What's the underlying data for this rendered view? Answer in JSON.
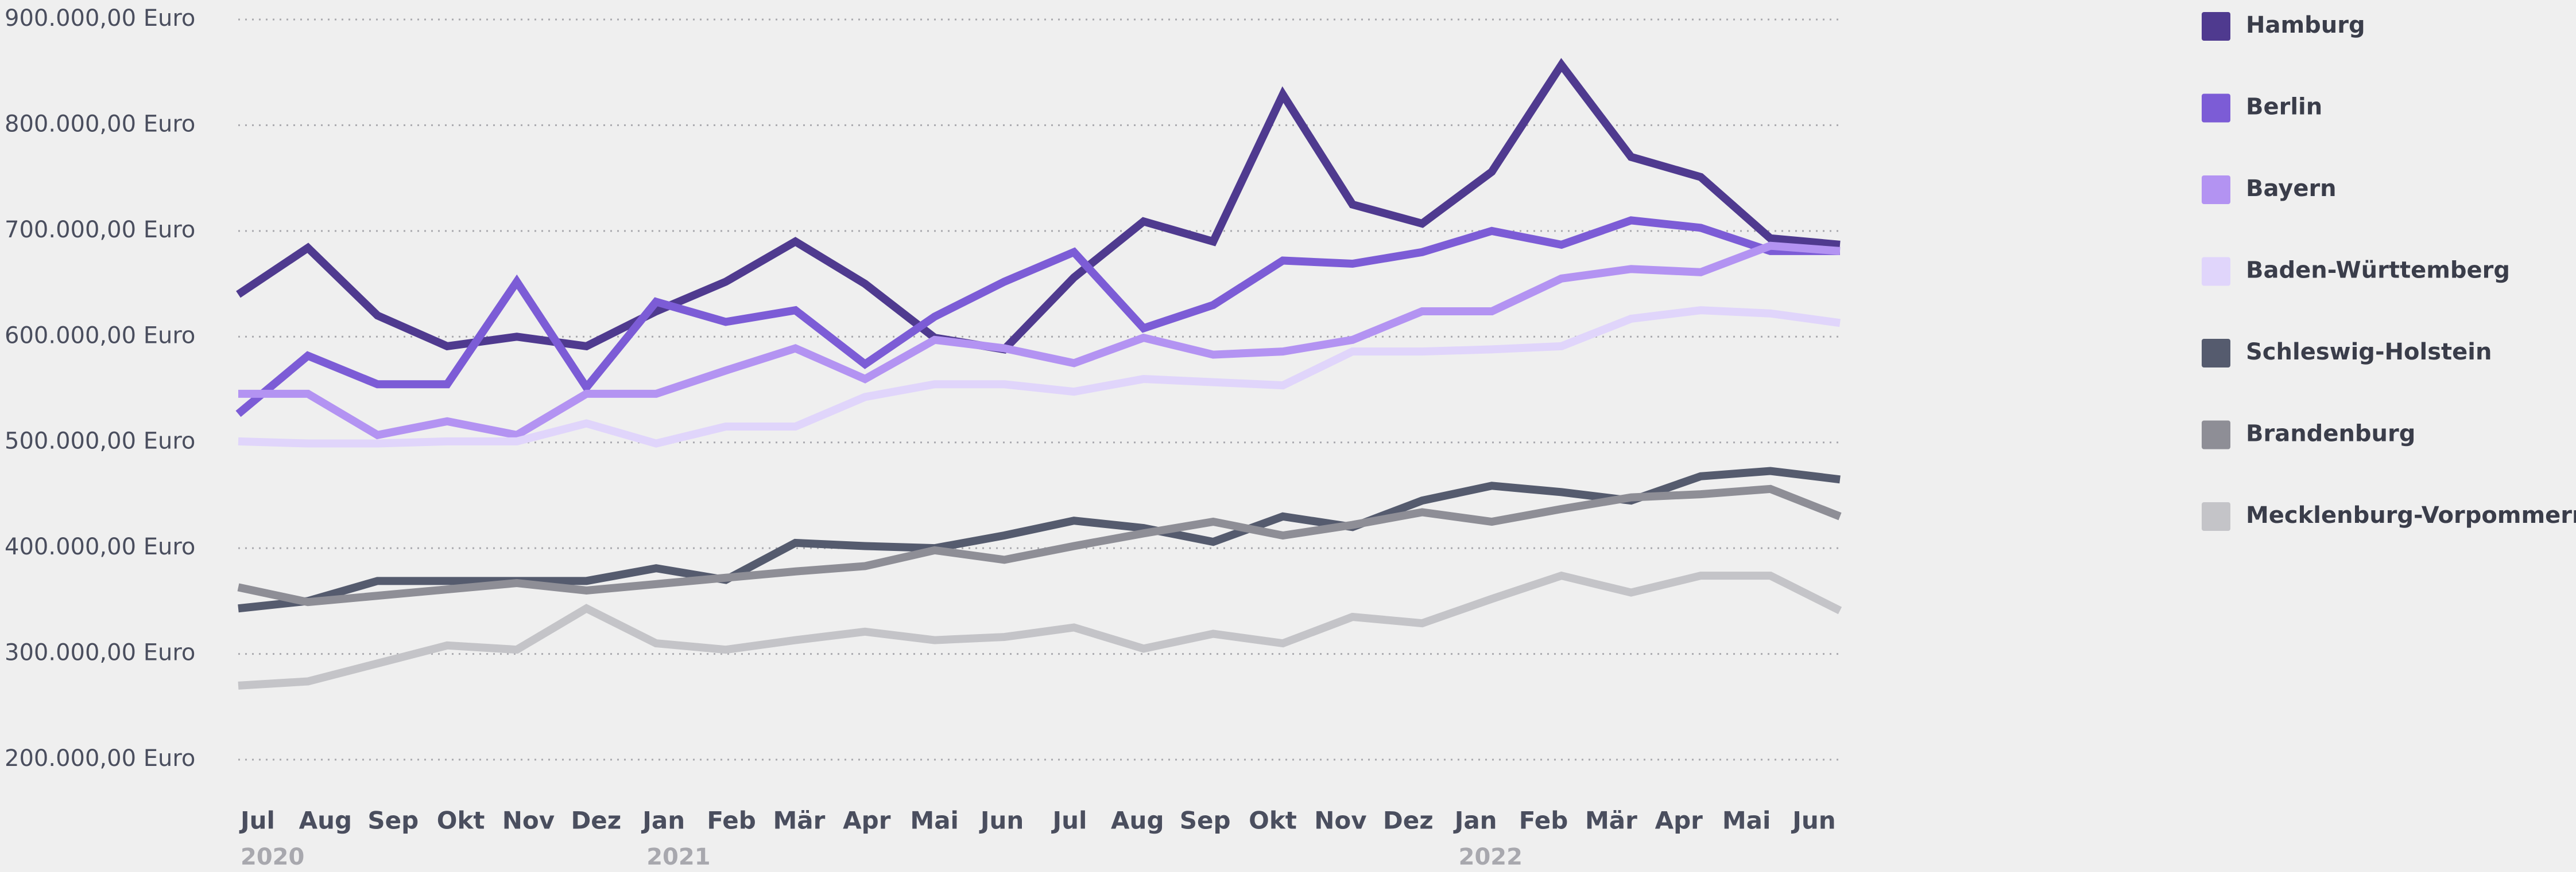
{
  "chart_data": {
    "type": "line",
    "categories": [
      "Jul",
      "Aug",
      "Sep",
      "Okt",
      "Nov",
      "Dez",
      "Jan",
      "Feb",
      "Mär",
      "Apr",
      "Mai",
      "Jun",
      "Jul",
      "Aug",
      "Sep",
      "Okt",
      "Nov",
      "Dez",
      "Jan",
      "Feb",
      "Mär",
      "Apr",
      "Mai",
      "Jun"
    ],
    "years": [
      "2020",
      null,
      null,
      null,
      null,
      null,
      "2021",
      null,
      null,
      null,
      null,
      null,
      null,
      null,
      null,
      null,
      null,
      null,
      "2022",
      null,
      null,
      null,
      null,
      null
    ],
    "ylim": [
      200000,
      900000
    ],
    "yticks": [
      {
        "value": 900000,
        "label": "900.000,00 Euro"
      },
      {
        "value": 800000,
        "label": "800.000,00 Euro"
      },
      {
        "value": 700000,
        "label": "700.000,00 Euro"
      },
      {
        "value": 600000,
        "label": "600.000,00 Euro"
      },
      {
        "value": 500000,
        "label": "500.000,00 Euro"
      },
      {
        "value": 400000,
        "label": "400.000,00 Euro"
      },
      {
        "value": 300000,
        "label": "300.000,00 Euro"
      },
      {
        "value": 200000,
        "label": "200.000,00 Euro"
      }
    ],
    "grid": true,
    "legend": "right",
    "series": [
      {
        "name": "Hamburg",
        "color": "#4f3a8f",
        "values": [
          640000,
          684000,
          620000,
          591000,
          600000,
          591000,
          624000,
          652000,
          690000,
          650000,
          599000,
          588000,
          656000,
          709000,
          690000,
          829000,
          725000,
          707000,
          756000,
          857000,
          770000,
          751000,
          693000,
          687000
        ]
      },
      {
        "name": "Berlin",
        "color": "#7c5cd6",
        "values": [
          527000,
          582000,
          555000,
          555000,
          652000,
          552000,
          633000,
          614000,
          625000,
          574000,
          619000,
          652000,
          680000,
          608000,
          630000,
          672000,
          669000,
          680000,
          700000,
          687000,
          710000,
          703000,
          681000,
          681000
        ]
      },
      {
        "name": "Bayern",
        "color": "#b393f2",
        "values": [
          546000,
          546000,
          507000,
          520000,
          507000,
          546000,
          546000,
          568000,
          589000,
          560000,
          597000,
          589000,
          575000,
          599000,
          583000,
          586000,
          597000,
          624000,
          624000,
          655000,
          664000,
          661000,
          686000,
          681000
        ]
      },
      {
        "name": "Baden-Württemberg",
        "color": "#e0d5fb",
        "values": [
          501000,
          499000,
          499000,
          501000,
          501000,
          518000,
          499000,
          515000,
          515000,
          543000,
          555000,
          555000,
          548000,
          560000,
          557000,
          554000,
          586000,
          586000,
          588000,
          591000,
          617000,
          625000,
          622000,
          613000
        ]
      },
      {
        "name": "Schleswig-Holstein",
        "color": "#555b6e",
        "values": [
          343000,
          350000,
          369000,
          369000,
          369000,
          369000,
          381000,
          370000,
          405000,
          402000,
          400000,
          412000,
          426000,
          419000,
          406000,
          430000,
          420000,
          445000,
          459000,
          453000,
          445000,
          468000,
          473000,
          465000
        ]
      },
      {
        "name": "Brandenburg",
        "color": "#8e8e96",
        "values": [
          363000,
          349000,
          355000,
          361000,
          367000,
          360000,
          366000,
          372000,
          378000,
          383000,
          398000,
          389000,
          402000,
          414000,
          425000,
          412000,
          422000,
          434000,
          425000,
          437000,
          448000,
          451000,
          456000,
          430000
        ]
      },
      {
        "name": "Mecklenburg-Vorpommern",
        "color": "#c4c4c8",
        "values": [
          270000,
          274000,
          291000,
          308000,
          304000,
          343000,
          310000,
          304000,
          313000,
          321000,
          313000,
          316000,
          325000,
          305000,
          319000,
          310000,
          335000,
          329000,
          352000,
          374000,
          358000,
          374000,
          374000,
          341000
        ]
      }
    ]
  }
}
